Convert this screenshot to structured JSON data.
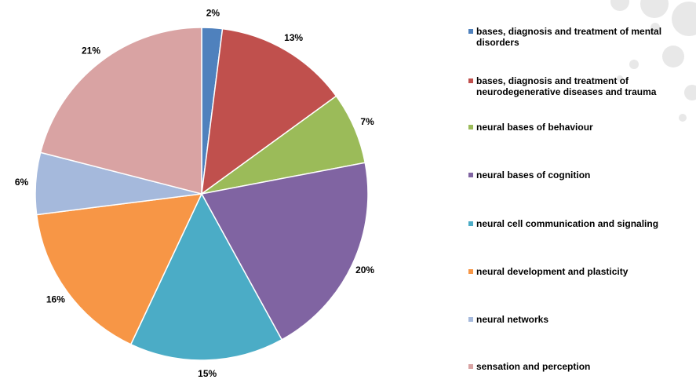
{
  "chart_data": {
    "type": "pie",
    "series": [
      {
        "name": "bases, diagnosis and treatment of mental disorders",
        "value": 2,
        "label": "2%",
        "color": "#4f81bd"
      },
      {
        "name": "bases, diagnosis and treatment of neurodegenerative diseases and trauma",
        "value": 13,
        "label": "13%",
        "color": "#c0504d"
      },
      {
        "name": "neural bases of behaviour",
        "value": 7,
        "label": "7%",
        "color": "#9bbb59"
      },
      {
        "name": "neural bases of cognition",
        "value": 20,
        "label": "20%",
        "color": "#8064a2"
      },
      {
        "name": "neural cell communication and signaling",
        "value": 15,
        "label": "15%",
        "color": "#4bacc6"
      },
      {
        "name": "neural development and plasticity",
        "value": 16,
        "label": "16%",
        "color": "#f79646"
      },
      {
        "name": "neural networks",
        "value": 6,
        "label": "6%",
        "color": "#a5b9dc"
      },
      {
        "name": "sensation and perception",
        "value": 21,
        "label": "21%",
        "color": "#d9a3a3"
      }
    ],
    "legend_position": "right"
  },
  "decor": {
    "dot_color": "#e8e8e8"
  }
}
